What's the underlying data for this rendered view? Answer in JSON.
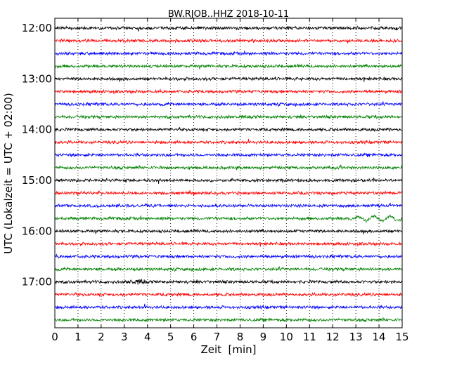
{
  "chart_data": {
    "type": "line",
    "title": "BW.RJOB..HHZ 2018-10-11",
    "xlabel": "Zeit  [min]",
    "ylabel": "UTC (Lokalzeit = UTC + 02:00)",
    "xlim": [
      0,
      15
    ],
    "x_ticks": [
      "0",
      "1",
      "2",
      "3",
      "4",
      "5",
      "6",
      "7",
      "8",
      "9",
      "10",
      "11",
      "12",
      "13",
      "14",
      "15"
    ],
    "y_ticks": [
      "12:00",
      "13:00",
      "14:00",
      "15:00",
      "16:00",
      "17:00"
    ],
    "trace_minutes": 15,
    "traces_per_hour": 4,
    "start": "12:00",
    "trace_count": 24,
    "grid": "vertical dotted at each minute",
    "colors": [
      "#000000",
      "#ff0000",
      "#0000ff",
      "#008000"
    ],
    "events": [
      {
        "trace_start": "15:45",
        "minute_start": 12.6,
        "minute_end": 15,
        "description": "wave"
      },
      {
        "trace_start": "17:00",
        "minute_start": 3.1,
        "minute_end": 3.9,
        "description": "burst"
      }
    ]
  }
}
